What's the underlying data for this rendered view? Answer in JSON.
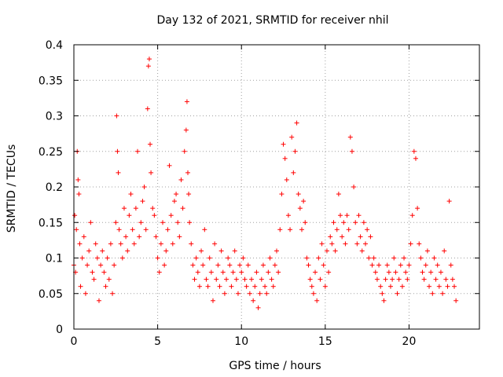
{
  "chart_data": {
    "type": "scatter",
    "title": "Day 132 of 2021, SRMTID for receiver nhil",
    "xlabel": "GPS time / hours",
    "ylabel": "SRMTID / TECUs",
    "xlim": [
      0,
      24.2
    ],
    "ylim": [
      0,
      0.4
    ],
    "x_ticks": [
      0,
      5,
      10,
      15,
      20
    ],
    "x_tick_labels": [
      "0",
      "5",
      "10",
      "15",
      "20"
    ],
    "y_ticks": [
      0,
      0.05,
      0.1,
      0.15,
      0.2,
      0.25,
      0.3,
      0.35,
      0.4
    ],
    "y_tick_labels": [
      "0",
      "0.05",
      "0.1",
      "0.15",
      "0.2",
      "0.25",
      "0.3",
      "0.35",
      "0.4"
    ],
    "grid": true,
    "marker": "+",
    "color": "#ff0000",
    "series": [
      {
        "name": "SRMTID",
        "x": [
          0.0,
          0.05,
          0.1,
          0.15,
          0.2,
          0.25,
          0.3,
          0.35,
          0.4,
          0.5,
          0.6,
          0.7,
          0.8,
          0.9,
          1.0,
          1.1,
          1.2,
          1.3,
          1.4,
          1.5,
          1.6,
          1.7,
          1.8,
          1.9,
          2.0,
          2.1,
          2.2,
          2.3,
          2.4,
          2.5,
          2.55,
          2.6,
          2.65,
          2.7,
          2.8,
          2.9,
          3.0,
          3.1,
          3.2,
          3.3,
          3.4,
          3.5,
          3.6,
          3.7,
          3.8,
          3.9,
          4.0,
          4.1,
          4.2,
          4.3,
          4.4,
          4.45,
          4.5,
          4.55,
          4.6,
          4.7,
          4.8,
          4.9,
          5.0,
          5.1,
          5.2,
          5.3,
          5.4,
          5.5,
          5.6,
          5.7,
          5.8,
          5.9,
          6.0,
          6.1,
          6.2,
          6.3,
          6.4,
          6.5,
          6.6,
          6.7,
          6.75,
          6.8,
          6.85,
          6.9,
          7.0,
          7.1,
          7.2,
          7.3,
          7.4,
          7.5,
          7.6,
          7.7,
          7.8,
          7.9,
          8.0,
          8.1,
          8.2,
          8.3,
          8.4,
          8.5,
          8.6,
          8.7,
          8.8,
          8.9,
          9.0,
          9.1,
          9.2,
          9.3,
          9.4,
          9.5,
          9.6,
          9.7,
          9.8,
          9.9,
          10.0,
          10.1,
          10.2,
          10.3,
          10.4,
          10.5,
          10.6,
          10.7,
          10.8,
          10.9,
          11.0,
          11.1,
          11.2,
          11.3,
          11.4,
          11.5,
          11.6,
          11.7,
          11.8,
          11.9,
          12.0,
          12.1,
          12.2,
          12.3,
          12.4,
          12.5,
          12.6,
          12.7,
          12.8,
          12.9,
          13.0,
          13.1,
          13.2,
          13.3,
          13.4,
          13.5,
          13.6,
          13.7,
          13.8,
          13.9,
          14.0,
          14.1,
          14.2,
          14.3,
          14.4,
          14.5,
          14.6,
          14.7,
          14.8,
          14.9,
          15.0,
          15.1,
          15.2,
          15.3,
          15.4,
          15.5,
          15.6,
          15.7,
          15.8,
          15.9,
          16.0,
          16.1,
          16.2,
          16.3,
          16.4,
          16.5,
          16.6,
          16.7,
          16.8,
          16.9,
          17.0,
          17.1,
          17.2,
          17.3,
          17.4,
          17.5,
          17.6,
          17.7,
          17.8,
          17.9,
          18.0,
          18.1,
          18.2,
          18.3,
          18.4,
          18.5,
          18.6,
          18.7,
          18.8,
          18.9,
          19.0,
          19.1,
          19.2,
          19.3,
          19.4,
          19.5,
          19.6,
          19.7,
          19.8,
          19.9,
          20.0,
          20.1,
          20.2,
          20.3,
          20.4,
          20.5,
          20.6,
          20.7,
          20.8,
          20.9,
          21.0,
          21.1,
          21.2,
          21.3,
          21.4,
          21.5,
          21.6,
          21.7,
          21.8,
          21.9,
          22.0,
          22.1,
          22.2,
          22.3,
          22.4,
          22.5,
          22.6,
          22.7,
          22.8
        ],
        "y": [
          0.09,
          0.16,
          0.08,
          0.14,
          0.25,
          0.21,
          0.19,
          0.12,
          0.06,
          0.1,
          0.13,
          0.05,
          0.09,
          0.11,
          0.15,
          0.08,
          0.07,
          0.12,
          0.1,
          0.04,
          0.09,
          0.11,
          0.08,
          0.06,
          0.1,
          0.07,
          0.12,
          0.05,
          0.09,
          0.15,
          0.3,
          0.25,
          0.22,
          0.14,
          0.12,
          0.1,
          0.17,
          0.13,
          0.11,
          0.16,
          0.19,
          0.14,
          0.12,
          0.17,
          0.25,
          0.13,
          0.15,
          0.18,
          0.2,
          0.14,
          0.31,
          0.37,
          0.38,
          0.26,
          0.22,
          0.17,
          0.16,
          0.13,
          0.1,
          0.08,
          0.12,
          0.15,
          0.09,
          0.11,
          0.14,
          0.23,
          0.16,
          0.12,
          0.18,
          0.19,
          0.15,
          0.13,
          0.21,
          0.17,
          0.25,
          0.28,
          0.32,
          0.22,
          0.19,
          0.15,
          0.12,
          0.09,
          0.07,
          0.1,
          0.08,
          0.06,
          0.11,
          0.09,
          0.14,
          0.07,
          0.06,
          0.1,
          0.08,
          0.04,
          0.12,
          0.07,
          0.09,
          0.06,
          0.11,
          0.08,
          0.05,
          0.07,
          0.1,
          0.09,
          0.06,
          0.08,
          0.11,
          0.07,
          0.05,
          0.09,
          0.08,
          0.1,
          0.07,
          0.06,
          0.09,
          0.05,
          0.07,
          0.04,
          0.06,
          0.08,
          0.03,
          0.05,
          0.07,
          0.09,
          0.06,
          0.05,
          0.08,
          0.1,
          0.07,
          0.06,
          0.09,
          0.11,
          0.08,
          0.14,
          0.19,
          0.26,
          0.24,
          0.21,
          0.16,
          0.14,
          0.27,
          0.22,
          0.25,
          0.29,
          0.19,
          0.17,
          0.14,
          0.18,
          0.15,
          0.1,
          0.09,
          0.07,
          0.06,
          0.05,
          0.08,
          0.04,
          0.1,
          0.07,
          0.12,
          0.09,
          0.06,
          0.11,
          0.08,
          0.13,
          0.12,
          0.15,
          0.11,
          0.14,
          0.19,
          0.16,
          0.13,
          0.15,
          0.12,
          0.16,
          0.14,
          0.27,
          0.25,
          0.2,
          0.15,
          0.12,
          0.16,
          0.13,
          0.11,
          0.15,
          0.12,
          0.14,
          0.1,
          0.13,
          0.09,
          0.1,
          0.08,
          0.07,
          0.09,
          0.06,
          0.05,
          0.04,
          0.07,
          0.09,
          0.08,
          0.06,
          0.07,
          0.1,
          0.08,
          0.05,
          0.07,
          0.09,
          0.06,
          0.1,
          0.08,
          0.07,
          0.09,
          0.12,
          0.16,
          0.25,
          0.24,
          0.17,
          0.12,
          0.1,
          0.08,
          0.07,
          0.09,
          0.11,
          0.06,
          0.08,
          0.05,
          0.1,
          0.07,
          0.09,
          0.06,
          0.08,
          0.05,
          0.11,
          0.07,
          0.06,
          0.18,
          0.09,
          0.07,
          0.06,
          0.04
        ]
      }
    ]
  }
}
